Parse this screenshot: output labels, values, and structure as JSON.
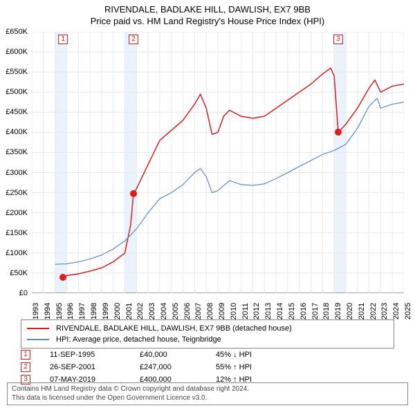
{
  "title": {
    "main": "RIVENDALE, BADLAKE HILL, DAWLISH, EX7 9BB",
    "sub": "Price paid vs. HM Land Registry's House Price Index (HPI)"
  },
  "chart": {
    "type": "line",
    "background_color": "#ffffff",
    "grid_color": "#e8e8e8",
    "highlight_band_color": "#eaf2fb",
    "ylim": [
      0,
      650000
    ],
    "ytick_step": 50000,
    "ytick_labels": [
      "£0",
      "£50K",
      "£100K",
      "£150K",
      "£200K",
      "£250K",
      "£300K",
      "£350K",
      "£400K",
      "£450K",
      "£500K",
      "£550K",
      "£600K",
      "£650K"
    ],
    "xlim": [
      1993,
      2025
    ],
    "xtick_step": 1,
    "xtick_labels": [
      "1993",
      "1994",
      "1995",
      "1996",
      "1997",
      "1998",
      "1999",
      "2000",
      "2001",
      "2002",
      "2003",
      "2004",
      "2005",
      "2006",
      "2007",
      "2008",
      "2009",
      "2010",
      "2011",
      "2012",
      "2013",
      "2014",
      "2015",
      "2016",
      "2017",
      "2018",
      "2019",
      "2020",
      "2021",
      "2022",
      "2023",
      "2024",
      "2025"
    ],
    "series": [
      {
        "name": "RIVENDALE, BADLAKE HILL, DAWLISH, EX7 9BB (detached house)",
        "color": "#e11b1b",
        "line_width": 1.5,
        "data": [
          [
            1995.7,
            40000
          ],
          [
            1996,
            44000
          ],
          [
            1997,
            48000
          ],
          [
            1998,
            55000
          ],
          [
            1999,
            63000
          ],
          [
            2000,
            78000
          ],
          [
            2001,
            100000
          ],
          [
            2001.5,
            170000
          ],
          [
            2001.74,
            247000
          ],
          [
            2002,
            260000
          ],
          [
            2003,
            320000
          ],
          [
            2004,
            380000
          ],
          [
            2005,
            405000
          ],
          [
            2006,
            430000
          ],
          [
            2007,
            470000
          ],
          [
            2007.5,
            495000
          ],
          [
            2008,
            460000
          ],
          [
            2008.5,
            395000
          ],
          [
            2009,
            400000
          ],
          [
            2009.5,
            440000
          ],
          [
            2010,
            455000
          ],
          [
            2011,
            440000
          ],
          [
            2012,
            435000
          ],
          [
            2013,
            440000
          ],
          [
            2014,
            460000
          ],
          [
            2015,
            480000
          ],
          [
            2016,
            500000
          ],
          [
            2017,
            520000
          ],
          [
            2018,
            545000
          ],
          [
            2018.7,
            560000
          ],
          [
            2019,
            540000
          ],
          [
            2019.35,
            400000
          ],
          [
            2020,
            420000
          ],
          [
            2021,
            460000
          ],
          [
            2022,
            510000
          ],
          [
            2022.5,
            530000
          ],
          [
            2023,
            500000
          ],
          [
            2024,
            515000
          ],
          [
            2025,
            520000
          ]
        ]
      },
      {
        "name": "HPI: Average price, detached house, Teignbridge",
        "color": "#5b8cc9",
        "line_width": 1.2,
        "data": [
          [
            1995,
            72000
          ],
          [
            1996,
            73000
          ],
          [
            1997,
            78000
          ],
          [
            1998,
            85000
          ],
          [
            1999,
            95000
          ],
          [
            2000,
            110000
          ],
          [
            2001,
            130000
          ],
          [
            2002,
            160000
          ],
          [
            2003,
            200000
          ],
          [
            2004,
            235000
          ],
          [
            2005,
            250000
          ],
          [
            2006,
            270000
          ],
          [
            2007,
            300000
          ],
          [
            2007.5,
            310000
          ],
          [
            2008,
            290000
          ],
          [
            2008.5,
            250000
          ],
          [
            2009,
            255000
          ],
          [
            2010,
            280000
          ],
          [
            2011,
            270000
          ],
          [
            2012,
            268000
          ],
          [
            2013,
            272000
          ],
          [
            2014,
            285000
          ],
          [
            2015,
            300000
          ],
          [
            2016,
            315000
          ],
          [
            2017,
            330000
          ],
          [
            2018,
            345000
          ],
          [
            2019,
            355000
          ],
          [
            2020,
            370000
          ],
          [
            2021,
            410000
          ],
          [
            2022,
            465000
          ],
          [
            2022.7,
            485000
          ],
          [
            2023,
            460000
          ],
          [
            2024,
            470000
          ],
          [
            2025,
            475000
          ]
        ]
      }
    ],
    "sale_markers": [
      {
        "num": "1",
        "year": 1995.7,
        "value": 40000,
        "color": "#e11b1b"
      },
      {
        "num": "2",
        "year": 2001.74,
        "value": 247000,
        "color": "#e11b1b"
      },
      {
        "num": "3",
        "year": 2019.35,
        "value": 400000,
        "color": "#e11b1b"
      }
    ],
    "highlight_bands": [
      {
        "from": 1995,
        "to": 1996
      },
      {
        "from": 2001,
        "to": 2002
      },
      {
        "from": 2019,
        "to": 2020
      }
    ]
  },
  "legend": {
    "rows": [
      {
        "color": "#e11b1b",
        "label": "RIVENDALE, BADLAKE HILL, DAWLISH, EX7 9BB (detached house)"
      },
      {
        "color": "#5b8cc9",
        "label": "HPI: Average price, detached house, Teignbridge"
      }
    ]
  },
  "sales": [
    {
      "num": "1",
      "date": "11-SEP-1995",
      "price": "£40,000",
      "pct": "45% ↓ HPI",
      "color": "#e11b1b"
    },
    {
      "num": "2",
      "date": "26-SEP-2001",
      "price": "£247,000",
      "pct": "55% ↑ HPI",
      "color": "#e11b1b"
    },
    {
      "num": "3",
      "date": "07-MAY-2019",
      "price": "£400,000",
      "pct": "12% ↑ HPI",
      "color": "#e11b1b"
    }
  ],
  "footer": {
    "line1": "Contains HM Land Registry data © Crown copyright and database right 2024.",
    "line2": "This data is licensed under the Open Government Licence v3.0."
  }
}
